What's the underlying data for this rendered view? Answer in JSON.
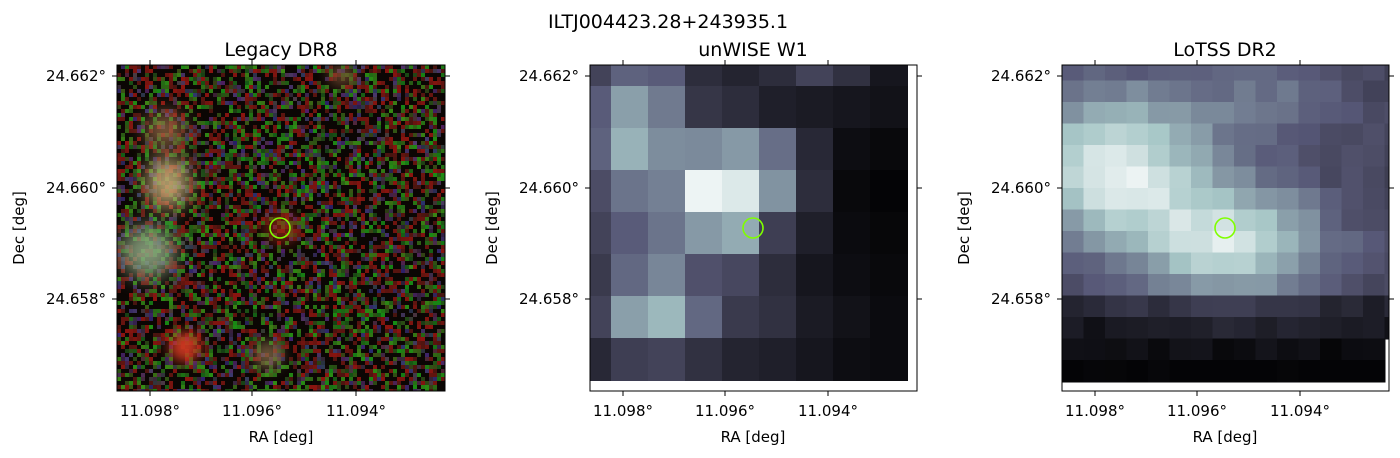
{
  "figure": {
    "title": "ILTJ004423.28+243935.1"
  },
  "colors": {
    "marker": "#7fff00",
    "axis": "#000000"
  },
  "panels": [
    {
      "id": "legacy",
      "title": "Legacy DR8",
      "xlabel": "RA [deg]",
      "ylabel": "Dec [deg]",
      "xticks": [
        "11.098°",
        "11.096°",
        "11.094°"
      ],
      "yticks": [
        "24.662°",
        "24.660°",
        "24.658°"
      ],
      "image": "color"
    },
    {
      "id": "unwise",
      "title": "unWISE W1",
      "xlabel": "RA [deg]",
      "ylabel": "Dec [deg]",
      "xticks": [
        "11.098°",
        "11.096°",
        "11.094°"
      ],
      "yticks": [
        "24.662°",
        "24.660°",
        "24.658°"
      ],
      "image": "bone"
    },
    {
      "id": "lotss",
      "title": "LoTSS DR2",
      "xlabel": "RA [deg]",
      "ylabel": "Dec [deg]",
      "xticks": [
        "11.098°",
        "11.096°",
        "11.094°"
      ],
      "yticks": [
        "24.662°",
        "24.660°",
        "24.658°"
      ],
      "image": "bone"
    }
  ],
  "chart_data": {
    "type": "image",
    "title": "ILTJ004423.28+243935.1",
    "panels": [
      "Legacy DR8",
      "unWISE W1",
      "LoTSS DR2"
    ],
    "xlabel": "RA [deg]",
    "ylabel": "Dec [deg]",
    "xticks": [
      11.098,
      11.096,
      11.094
    ],
    "yticks": [
      24.662,
      24.66,
      24.658
    ],
    "marker": {
      "ra": 11.0955,
      "dec": 24.6593
    },
    "grid": false,
    "legend": "none"
  }
}
